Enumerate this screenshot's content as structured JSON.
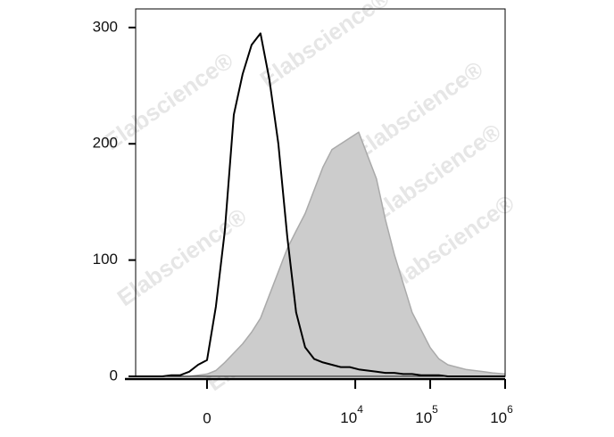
{
  "chart_data": {
    "type": "histogram-overlay",
    "xscale": "biexponential",
    "watermark": "Elabscience®",
    "x": [
      -929,
      -700,
      -523,
      -387,
      -279,
      -193,
      -121,
      -58,
      0,
      58,
      121,
      193,
      279,
      387,
      523,
      700,
      929,
      1229,
      1617,
      2135,
      2812,
      3700,
      4868,
      6405,
      8430,
      11090,
      14580,
      19180,
      25230,
      33190,
      43660,
      57420,
      75530,
      99350,
      130700,
      171900,
      226100,
      297400,
      391200,
      514600,
      676900,
      1000000
    ],
    "series": [
      {
        "color": "#aaaaaa",
        "fill": "#cccccc",
        "filled": true,
        "values": [
          0,
          0,
          0,
          0,
          0,
          0,
          0,
          1,
          2,
          5,
          12,
          20,
          28,
          38,
          50,
          70,
          90,
          110,
          125,
          140,
          160,
          180,
          195,
          200,
          205,
          210,
          190,
          170,
          135,
          105,
          80,
          55,
          40,
          25,
          15,
          10,
          8,
          6,
          5,
          4,
          3,
          2
        ]
      },
      {
        "color": "#000000",
        "filled": false,
        "values": [
          0,
          0,
          0,
          0,
          1,
          1,
          4,
          10,
          14,
          60,
          125,
          225,
          260,
          285,
          295,
          255,
          200,
          120,
          55,
          25,
          15,
          12,
          10,
          8,
          8,
          6,
          5,
          4,
          3,
          3,
          2,
          2,
          1,
          1,
          1,
          0,
          0,
          0,
          0,
          0,
          0,
          0
        ]
      }
    ],
    "xlim": [
      -929,
      1000000
    ],
    "xticks": [
      0,
      {
        "value": 10000,
        "label": "10",
        "exponent": "4"
      },
      {
        "value": 100000,
        "label": "10",
        "exponent": "5"
      },
      {
        "value": 1000000,
        "label": "10",
        "exponent": "6"
      }
    ],
    "ylim": [
      0,
      316
    ],
    "yticks": [
      0,
      100,
      200,
      300
    ]
  }
}
